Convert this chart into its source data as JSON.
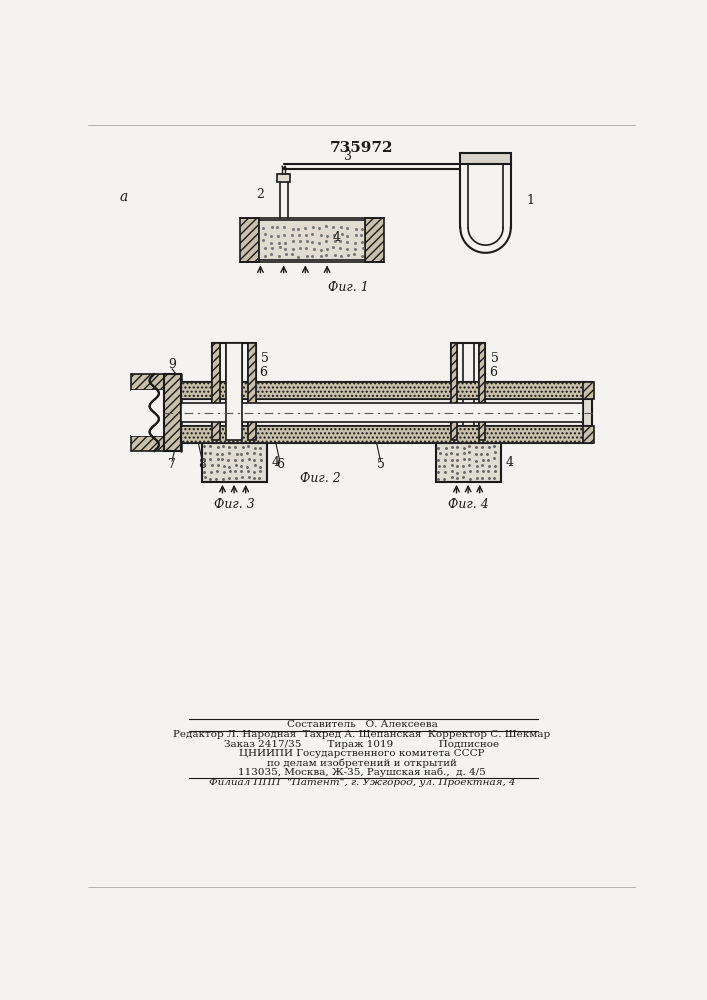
{
  "patent_number": "735972",
  "bg_color": "#f5f3ef",
  "line_color": "#1a1a1a",
  "fig1_caption": "Фиг. 1",
  "fig2_caption": "Фиг. 2",
  "fig3_caption": "Фиг. 3",
  "fig4_caption": "Фиг. 4",
  "footer_lines": [
    "Составитель   О. Алексеева",
    "Редактор Л. Народная  Тахред А. Щепанская  Корректор С. Шекмар",
    "Заказ 2417/35        Тираж 1019              Подписное",
    "ЦНИИПИ Государственного комитета СССР",
    "по делам изобретений и открытий",
    "113035, Москва, Ж-35, Раушская наб.,  д. 4/5",
    "Филиал ППП  \"Патент\", г. Ужгород, ул. Проектная, 4"
  ]
}
